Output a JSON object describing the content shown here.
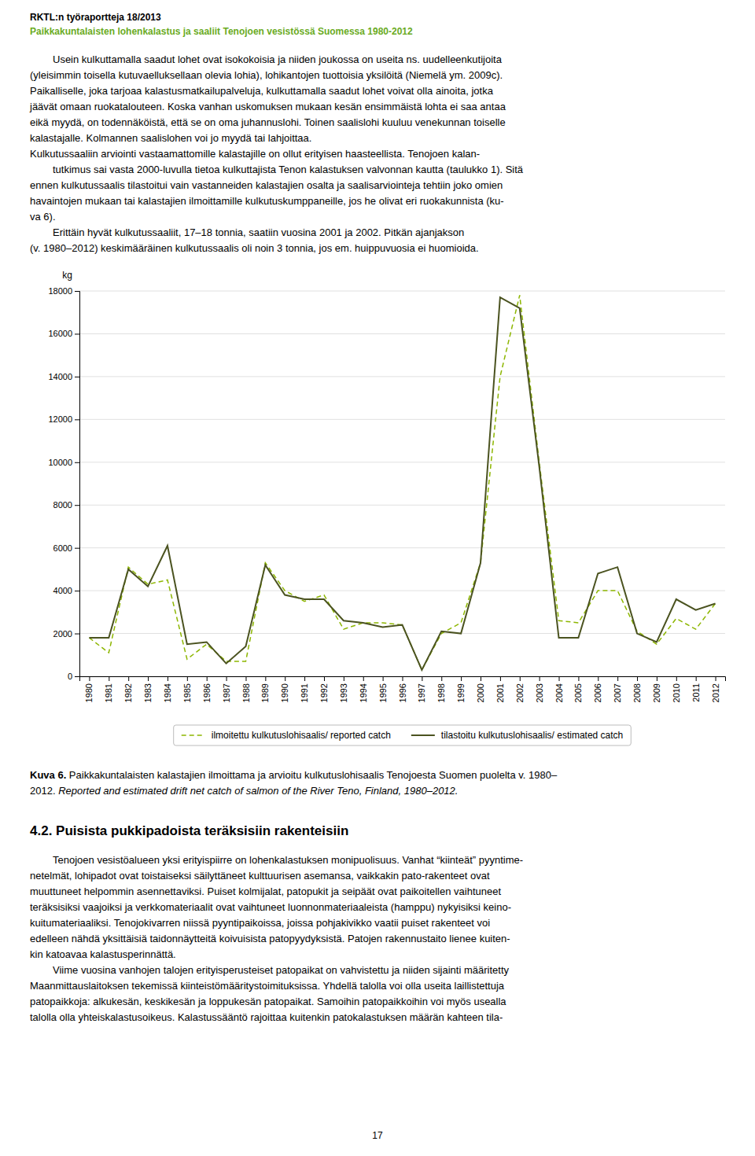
{
  "chart_data": {
    "type": "line",
    "x": [
      1980,
      1981,
      1982,
      1983,
      1984,
      1985,
      1986,
      1987,
      1988,
      1989,
      1990,
      1991,
      1992,
      1993,
      1994,
      1995,
      1996,
      1997,
      1998,
      1999,
      2000,
      2001,
      2002,
      2003,
      2004,
      2005,
      2006,
      2007,
      2008,
      2009,
      2010,
      2011,
      2012
    ],
    "series": [
      {
        "name": "ilmoitettu kulkutuslohisaalis/ reported catch",
        "color": "#8db600",
        "line_style": "dashed",
        "values": [
          1800,
          1100,
          5100,
          4300,
          4500,
          800,
          1500,
          700,
          700,
          5300,
          4000,
          3500,
          3800,
          2200,
          2500,
          2500,
          2400,
          300,
          2000,
          2500,
          5300,
          14000,
          17800,
          10000,
          2600,
          2500,
          4000,
          4000,
          2100,
          1500,
          2700,
          2200,
          3400
        ]
      },
      {
        "name": "tilastoitu kulkutuslohisaalis/ estimated catch",
        "color": "#4b5320",
        "line_style": "solid",
        "values": [
          1800,
          1800,
          5000,
          4200,
          6100,
          1500,
          1600,
          600,
          1400,
          5200,
          3800,
          3600,
          3600,
          2600,
          2500,
          2300,
          2400,
          300,
          2100,
          2000,
          5300,
          17700,
          17200,
          9800,
          1800,
          1800,
          4800,
          5100,
          2000,
          1600,
          3600,
          3100,
          3400
        ]
      }
    ],
    "ylabel": "kg",
    "xlim": [
      1979.5,
      2012.5
    ],
    "xticks": [
      1980,
      1981,
      1982,
      1983,
      1984,
      1985,
      1986,
      1987,
      1988,
      1989,
      1990,
      1991,
      1992,
      1993,
      1994,
      1995,
      1996,
      1997,
      1998,
      1999,
      2000,
      2001,
      2002,
      2003,
      2004,
      2005,
      2006,
      2007,
      2008,
      2009,
      2010,
      2011,
      2012
    ],
    "ylim": [
      0,
      18000
    ],
    "yticks": [
      0,
      2000,
      4000,
      6000,
      8000,
      10000,
      12000,
      14000,
      16000,
      18000
    ],
    "grid": true,
    "legend": "bottom"
  },
  "page": {
    "background_color": "#ffffff",
    "header_line1": "RKTL:n työraportteja 18/2013",
    "header_color1": "#000000",
    "header_line2": "Paikkakuntalaisten lohenkalastus ja saaliit Tenojoen vesistössä Suomessa 1980-2012",
    "header_color2": "#6aab1f",
    "body_text": [
      "Usein kulkuttamalla saadut lohet ovat isokokoisia ja niiden joukossa on useita ns. uudelleenkutijoita",
      "(yleisimmin toisella kutuvaelluksellaan olevia lohia), lohikantojen tuottoisia yksilöitä (Niemelä ym. 2009c).",
      "Paikalliselle, joka tarjoaa kalastusmatkailupalveluja, kulkuttamalla saadut lohet voivat olla ainoita, jotka",
      "jäävät omaan ruokatalouteen. Koska vanhan uskomuksen mukaan kesän ensimmäistä lohta ei saa antaa",
      "eikä myydä, on todennäköistä, että se on oma juhannuslohi. Toinen saalislohi kuuluu venekunnan toiselle",
      "kalastajalle. Kolmannen saalislohen voi jo myydä tai lahjoittaa.",
      "Kulkutussaaliin arviointi vastaamattomille kalastajille on ollut erityisen haasteellista. Tenojoen kalan-",
      "tutkimus sai vasta 2000-luvulla tietoa kulkuttajista Tenon kalastuksen valvonnan kautta (taulukko 1). Sitä",
      "ennen kulkutussaalis tilastoitui vain vastanneiden kalastajien osalta ja saalisarviointeja tehtiin joko omien",
      "havaintojen mukaan tai kalastajien ilmoittamille kulkutuskumppaneille, jos he olivat eri ruokakunnista (ku-",
      "va 6).",
      "Erittäin hyvät kulkutussaaliit, 17–18 tonnia, saatiin vuosina 2001 ja 2002. Pitkän ajanjakson",
      "(v. 1980–2012) keskimääräinen kulkutussaalis oli noin 3 tonnia, jos em. huippuvuosia ei huomioida."
    ],
    "caption_bold": "Kuva 6.",
    "caption_normal": " Paikkakuntalaisten kalastajien ilmoittama ja arvioitu kulkutuslohisaalis Tenojoesta Suomen puolelta v. 1980–",
    "caption_line2": "2012. ",
    "caption_italic": "Reported and estimated drift net catch of salmon of the River Teno, Finland, 1980–2012.",
    "section_heading": "4.2. Puisista pukkipadoista teräksisiin rakenteisiin",
    "section_body": [
      "Tenojoen vesistöalueen yksi erityispiirre on lohenkalastuksen monipuolisuus. Vanhat “kiinteät” pyyntime-",
      "netelmät, lohipadot ovat toistaiseksi säilyttäneet kulttuurisen asemansa, vaikkakin pato-rakenteet ovat",
      "muuttuneet helpommin asennettaviksi. Puiset kolmijalat, patopukit ja seipäät ovat paikoitellen vaihtuneet",
      "teräksisiksi vaajoiksi ja verkkomateriaalit ovat vaihtuneet luonnonmateriaaleista (hamppu) nykyisiksi keino-",
      "kuitumateriaaliksi. Tenojokivarren niissä pyyntipaikoissa, joissa pohjakivikko vaatii puiset rakenteet voi",
      "edelleen nähdä yksittäisiä taidonnäytteitä koivuisista patopyydyksistä. Patojen rakennustaito lienee kuiten-",
      "kin katoavaa kalastusperinnättä.",
      "Viime vuosina vanhojen talojen erityisperusteiset patopaikat on vahvistettu ja niiden sijainti määritetty",
      "Maanmittauslaitoksen tekemissä kiinteistömääritystoimituksissa. Yhdellä talolla voi olla useita laillistettuja",
      "patopaikkoja: alkukesän, keskikesän ja loppukesän patopaikat. Samoihin patopaikkoihin voi myös usealla",
      "talolla olla yhteiskalastusoikeus. Kalastussääntö rajoittaa kuitenkin patokalastuksen määrän kahteen tila-"
    ],
    "page_number": "17"
  }
}
